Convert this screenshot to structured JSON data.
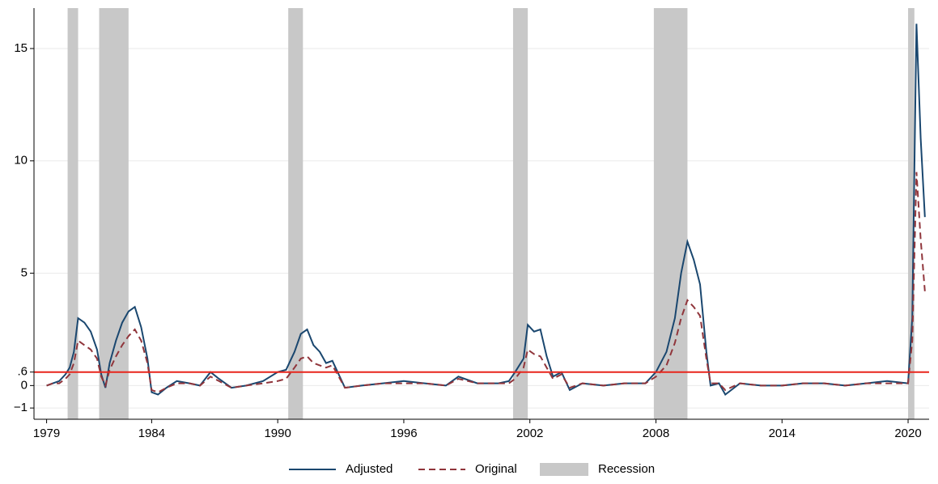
{
  "chart_data": {
    "type": "line",
    "x": [
      1979.0,
      1979.3,
      1979.6,
      1979.9,
      1980.1,
      1980.3,
      1980.5,
      1980.8,
      1981.1,
      1981.4,
      1981.6,
      1981.8,
      1982.0,
      1982.3,
      1982.6,
      1982.9,
      1983.2,
      1983.5,
      1983.8,
      1984.0,
      1984.3,
      1984.7,
      1985.2,
      1985.8,
      1986.3,
      1986.8,
      1987.2,
      1987.8,
      1988.5,
      1989.3,
      1990.0,
      1990.4,
      1990.8,
      1991.1,
      1991.4,
      1991.7,
      1992.0,
      1992.3,
      1992.6,
      1992.9,
      1993.2,
      1994.0,
      1995.0,
      1996.0,
      1997.0,
      1998.0,
      1998.6,
      1999.5,
      2000.5,
      2001.0,
      2001.3,
      2001.7,
      2001.9,
      2002.2,
      2002.5,
      2002.8,
      2003.1,
      2003.5,
      2003.9,
      2004.5,
      2005.5,
      2006.5,
      2007.5,
      2008.0,
      2008.5,
      2008.9,
      2009.2,
      2009.5,
      2009.8,
      2010.1,
      2010.4,
      2010.6,
      2011.0,
      2011.3,
      2012.0,
      2013.0,
      2014.0,
      2015.0,
      2016.0,
      2017.0,
      2018.0,
      2019.0,
      2020.0,
      2020.2,
      2020.4,
      2020.6,
      2020.8
    ],
    "series": [
      {
        "name": "Adjusted",
        "color": "#1a476f",
        "style": "solid",
        "values": [
          0,
          0.1,
          0.2,
          0.5,
          0.8,
          1.5,
          3.0,
          2.8,
          2.4,
          1.6,
          0.5,
          -0.1,
          1.0,
          2.0,
          2.8,
          3.3,
          3.5,
          2.6,
          1.2,
          -0.3,
          -0.4,
          -0.1,
          0.2,
          0.1,
          0,
          0.6,
          0.3,
          -0.1,
          0,
          0.2,
          0.6,
          0.7,
          1.5,
          2.3,
          2.5,
          1.8,
          1.5,
          1.0,
          1.1,
          0.5,
          -0.1,
          0,
          0.1,
          0.2,
          0.1,
          0,
          0.4,
          0.1,
          0.1,
          0.2,
          0.6,
          1.2,
          2.7,
          2.4,
          2.5,
          1.3,
          0.4,
          0.6,
          -0.2,
          0.1,
          0,
          0.1,
          0.1,
          0.6,
          1.5,
          3.0,
          5.0,
          6.4,
          5.6,
          4.5,
          1.5,
          0,
          0.1,
          -0.4,
          0.1,
          0,
          0,
          0.1,
          0.1,
          0,
          0.1,
          0.2,
          0.1,
          3.0,
          16.1,
          11.0,
          7.5
        ]
      },
      {
        "name": "Original",
        "color": "#90353b",
        "style": "dashed",
        "values": [
          0,
          0.1,
          0.1,
          0.3,
          0.5,
          1.0,
          2.0,
          1.8,
          1.6,
          1.2,
          0.4,
          0,
          0.7,
          1.3,
          1.8,
          2.2,
          2.5,
          2.0,
          1.0,
          -0.2,
          -0.3,
          -0.1,
          0.1,
          0.1,
          0,
          0.4,
          0.2,
          -0.1,
          0,
          0.1,
          0.2,
          0.3,
          0.8,
          1.2,
          1.3,
          1.0,
          0.9,
          0.8,
          0.9,
          0.4,
          -0.1,
          0,
          0.1,
          0.1,
          0.1,
          0,
          0.3,
          0.1,
          0.1,
          0.1,
          0.3,
          0.8,
          1.6,
          1.4,
          1.3,
          0.8,
          0.3,
          0.5,
          -0.1,
          0.1,
          0,
          0.1,
          0.1,
          0.4,
          0.9,
          1.9,
          3.0,
          3.8,
          3.5,
          3.1,
          1.2,
          0.1,
          0.1,
          -0.2,
          0.1,
          0,
          0,
          0.1,
          0.1,
          0,
          0.1,
          0.1,
          0.1,
          2.0,
          9.5,
          6.5,
          4.2
        ]
      }
    ],
    "recession_label": "Recession",
    "recession_color": "#c8c8c8",
    "recessions": [
      [
        1980.0,
        1980.5
      ],
      [
        1981.5,
        1982.9
      ],
      [
        1990.5,
        1991.2
      ],
      [
        2001.2,
        2001.9
      ],
      [
        2007.9,
        2009.5
      ],
      [
        2020.0,
        2020.3
      ]
    ],
    "hline": 0.6,
    "hline_color": "#e8251b",
    "xlim": [
      1978.4,
      2021.0
    ],
    "ylim": [
      -1.5,
      16.8
    ],
    "xticks": [
      1979,
      1984,
      1990,
      1996,
      2002,
      2008,
      2014,
      2020
    ],
    "yticks": [
      {
        "value": -1,
        "label": "−1"
      },
      0,
      {
        "value": 0.6,
        "label": ".6"
      },
      5,
      10,
      15
    ],
    "grid": true
  }
}
